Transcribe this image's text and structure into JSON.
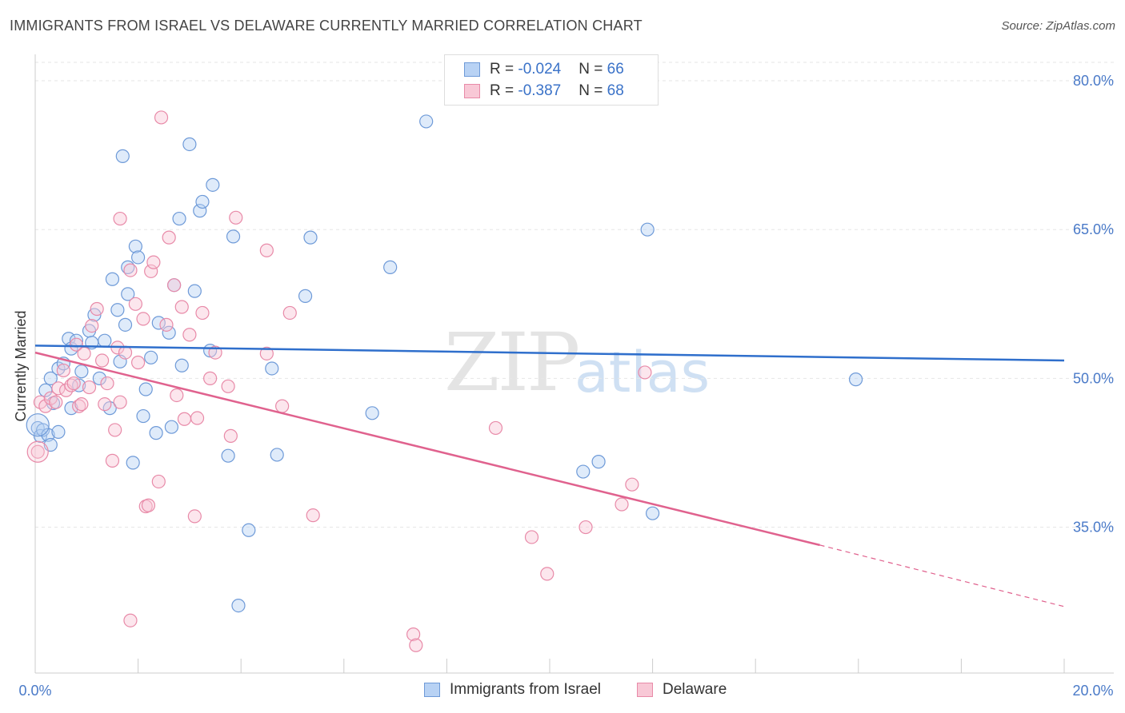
{
  "title": "IMMIGRANTS FROM ISRAEL VS DELAWARE CURRENTLY MARRIED CORRELATION CHART",
  "source": "Source: ZipAtlas.com",
  "watermark": {
    "zip": "ZIP",
    "atlas": "atlas"
  },
  "legend": {
    "series1": {
      "r_label": "R = ",
      "r_value": "-0.024",
      "n_label": "N = ",
      "n_value": "66"
    },
    "series2": {
      "r_label": "R = ",
      "r_value": "-0.387",
      "n_label": "N = ",
      "n_value": "68"
    }
  },
  "bottom_legend": {
    "series1": "Immigrants from Israel",
    "series2": "Delaware"
  },
  "colors": {
    "blue": "#6e9ad8",
    "blue_fill": "#b8d2f4",
    "blue_line": "#2f6fcc",
    "pink": "#e88aa8",
    "pink_fill": "#f8c8d6",
    "pink_line": "#e0628e"
  },
  "chart_data": {
    "type": "scatter",
    "title": "IMMIGRANTS FROM ISRAEL VS DELAWARE CURRENTLY MARRIED CORRELATION CHART",
    "xlabel": "",
    "ylabel": "Currently Married",
    "xlim": [
      0,
      20
    ],
    "ylim": [
      20.3,
      82.5
    ],
    "x_tick_labels": [
      "0.0%",
      "20.0%"
    ],
    "y_ticks": [
      35,
      50,
      65,
      80
    ],
    "y_tick_labels": [
      "35.0%",
      "50.0%",
      "65.0%",
      "80.0%"
    ],
    "grid": true,
    "series": [
      {
        "name": "Immigrants from Israel",
        "color": "#6e9ad8",
        "trend": {
          "x": [
            0,
            20
          ],
          "y": [
            53.3,
            51.8
          ]
        },
        "points": [
          [
            0.05,
            45.0
          ],
          [
            0.1,
            44.2
          ],
          [
            0.15,
            44.8
          ],
          [
            0.2,
            48.8
          ],
          [
            0.25,
            44.3
          ],
          [
            0.3,
            50.0
          ],
          [
            0.3,
            43.3
          ],
          [
            0.35,
            47.5
          ],
          [
            0.45,
            44.6
          ],
          [
            0.45,
            51.0
          ],
          [
            0.55,
            51.5
          ],
          [
            0.65,
            54.0
          ],
          [
            0.7,
            47.0
          ],
          [
            0.7,
            53.0
          ],
          [
            0.8,
            53.8
          ],
          [
            0.85,
            49.3
          ],
          [
            0.9,
            50.7
          ],
          [
            1.05,
            54.8
          ],
          [
            1.1,
            53.6
          ],
          [
            1.15,
            56.4
          ],
          [
            1.25,
            50.0
          ],
          [
            1.35,
            53.8
          ],
          [
            1.45,
            47.0
          ],
          [
            1.5,
            60.0
          ],
          [
            1.6,
            56.9
          ],
          [
            1.65,
            51.7
          ],
          [
            1.7,
            72.4
          ],
          [
            1.75,
            55.4
          ],
          [
            1.8,
            61.2
          ],
          [
            1.8,
            58.5
          ],
          [
            1.9,
            41.5
          ],
          [
            1.95,
            63.3
          ],
          [
            2.0,
            62.2
          ],
          [
            2.1,
            46.2
          ],
          [
            2.15,
            48.9
          ],
          [
            2.25,
            52.1
          ],
          [
            2.35,
            44.5
          ],
          [
            2.4,
            55.6
          ],
          [
            2.6,
            54.6
          ],
          [
            2.65,
            45.1
          ],
          [
            2.7,
            59.4
          ],
          [
            2.8,
            66.1
          ],
          [
            2.85,
            51.3
          ],
          [
            3.0,
            73.6
          ],
          [
            3.1,
            58.8
          ],
          [
            3.2,
            66.9
          ],
          [
            3.25,
            67.8
          ],
          [
            3.4,
            52.8
          ],
          [
            3.45,
            69.5
          ],
          [
            3.75,
            42.2
          ],
          [
            3.85,
            64.3
          ],
          [
            3.95,
            27.1
          ],
          [
            4.15,
            34.7
          ],
          [
            4.6,
            51.0
          ],
          [
            4.7,
            42.3
          ],
          [
            5.25,
            58.3
          ],
          [
            5.35,
            64.2
          ],
          [
            6.55,
            46.5
          ],
          [
            6.9,
            61.2
          ],
          [
            7.6,
            75.9
          ],
          [
            10.65,
            40.6
          ],
          [
            10.95,
            41.6
          ],
          [
            11.9,
            65.0
          ],
          [
            12.0,
            36.4
          ],
          [
            15.95,
            49.9
          ]
        ]
      },
      {
        "name": "Delaware",
        "color": "#e88aa8",
        "trend": {
          "x": [
            0,
            15.25
          ],
          "y": [
            52.6,
            33.2
          ]
        },
        "trend_dashed": {
          "x": [
            15.25,
            20
          ],
          "y": [
            33.2,
            27.0
          ]
        },
        "points": [
          [
            0.05,
            42.6
          ],
          [
            0.1,
            47.6
          ],
          [
            0.2,
            47.2
          ],
          [
            0.3,
            48.0
          ],
          [
            0.4,
            47.6
          ],
          [
            0.45,
            49.0
          ],
          [
            0.55,
            50.8
          ],
          [
            0.6,
            48.8
          ],
          [
            0.7,
            49.3
          ],
          [
            0.75,
            49.5
          ],
          [
            0.8,
            53.4
          ],
          [
            0.85,
            47.2
          ],
          [
            0.9,
            47.4
          ],
          [
            0.95,
            52.5
          ],
          [
            1.05,
            49.1
          ],
          [
            1.1,
            55.3
          ],
          [
            1.2,
            57.0
          ],
          [
            1.3,
            51.8
          ],
          [
            1.35,
            47.4
          ],
          [
            1.4,
            49.5
          ],
          [
            1.5,
            41.7
          ],
          [
            1.55,
            44.8
          ],
          [
            1.6,
            53.1
          ],
          [
            1.65,
            66.1
          ],
          [
            1.65,
            47.6
          ],
          [
            1.75,
            52.6
          ],
          [
            1.85,
            60.9
          ],
          [
            1.85,
            25.6
          ],
          [
            1.95,
            57.5
          ],
          [
            2.0,
            51.6
          ],
          [
            2.1,
            56.0
          ],
          [
            2.15,
            37.1
          ],
          [
            2.2,
            37.2
          ],
          [
            2.25,
            60.8
          ],
          [
            2.3,
            61.7
          ],
          [
            2.4,
            39.6
          ],
          [
            2.45,
            76.3
          ],
          [
            2.55,
            55.4
          ],
          [
            2.6,
            64.2
          ],
          [
            2.7,
            59.4
          ],
          [
            2.75,
            48.3
          ],
          [
            2.85,
            57.2
          ],
          [
            2.9,
            45.9
          ],
          [
            3.0,
            54.4
          ],
          [
            3.1,
            36.1
          ],
          [
            3.15,
            46.0
          ],
          [
            3.25,
            56.6
          ],
          [
            3.4,
            50.0
          ],
          [
            3.5,
            52.6
          ],
          [
            3.75,
            49.2
          ],
          [
            3.8,
            44.2
          ],
          [
            3.9,
            66.2
          ],
          [
            4.5,
            52.5
          ],
          [
            4.5,
            62.9
          ],
          [
            4.8,
            47.2
          ],
          [
            4.95,
            56.6
          ],
          [
            5.4,
            36.2
          ],
          [
            7.35,
            24.2
          ],
          [
            7.4,
            23.1
          ],
          [
            8.95,
            45.0
          ],
          [
            9.65,
            34.0
          ],
          [
            9.95,
            30.3
          ],
          [
            10.7,
            35.0
          ],
          [
            11.4,
            37.3
          ],
          [
            11.6,
            39.3
          ],
          [
            11.85,
            50.6
          ]
        ]
      }
    ]
  }
}
